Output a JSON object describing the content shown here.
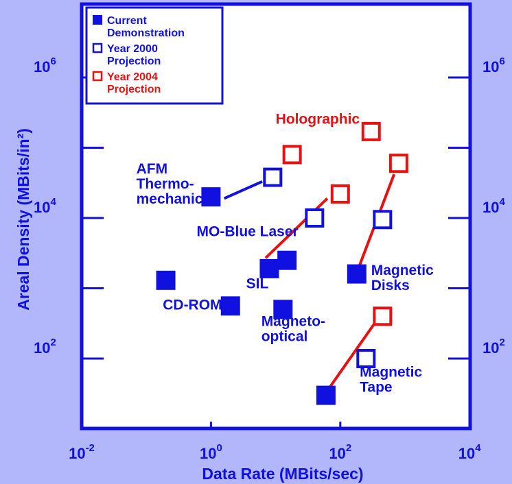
{
  "colors": {
    "background": "#b2b6fb",
    "axis": "#1010e0",
    "current": "#1010e0",
    "y2000": "#1010e0",
    "y2004": "#e81010",
    "plot_bg": "#ffffff"
  },
  "chart_data": {
    "type": "scatter",
    "xlabel": "Data Rate (MBits/sec)",
    "ylabel": "Areal Density (MBits/in²)",
    "x_scale": "log",
    "y_scale": "log",
    "xlim": [
      0.01,
      10000
    ],
    "ylim": [
      3,
      3000000
    ],
    "x_ticks": [
      {
        "value": 0.01,
        "base": "10",
        "exp": "-2"
      },
      {
        "value": 1,
        "base": "10",
        "exp": "0"
      },
      {
        "value": 100,
        "base": "10",
        "exp": "2"
      },
      {
        "value": 10000,
        "base": "10",
        "exp": "4"
      }
    ],
    "y_ticks": [
      {
        "value": 100,
        "base": "10",
        "exp": "2"
      },
      {
        "value": 10000,
        "base": "10",
        "exp": "4"
      },
      {
        "value": 1000000,
        "base": "10",
        "exp": "6"
      }
    ],
    "legend": {
      "placement": "top-left",
      "entries": [
        {
          "series": "current",
          "label": [
            "Current",
            "Demonstration"
          ]
        },
        {
          "series": "y2000",
          "label": [
            "Year 2000",
            "Projection"
          ]
        },
        {
          "series": "y2004",
          "label": [
            "Year 2004",
            "Projection"
          ]
        }
      ]
    },
    "series": [
      {
        "id": "current",
        "marker": "filled-square",
        "points": [
          {
            "name": "AFM Thermomechanical",
            "x": 1.0,
            "y": 20000
          },
          {
            "name": "MO-Blue Laser",
            "x": 15,
            "y": 2500
          },
          {
            "name": "SIL",
            "x": 8,
            "y": 1900
          },
          {
            "name": "Magneto-optical",
            "x": 13,
            "y": 500
          },
          {
            "name": "CD-ROM",
            "x": 0.2,
            "y": 1300
          },
          {
            "name": "CD-ROM",
            "x": 2,
            "y": 560
          },
          {
            "name": "Magnetic Disks",
            "x": 180,
            "y": 1600
          },
          {
            "name": "Magnetic Tape",
            "x": 60,
            "y": 30
          }
        ]
      },
      {
        "id": "y2000",
        "marker": "open-square",
        "points": [
          {
            "name": "AFM Thermomechanical",
            "x": 9,
            "y": 38000
          },
          {
            "name": "MO-Blue Laser",
            "x": 40,
            "y": 10000
          },
          {
            "name": "Magnetic Disks",
            "x": 450,
            "y": 9500
          },
          {
            "name": "Magnetic Tape",
            "x": 250,
            "y": 100
          }
        ]
      },
      {
        "id": "y2004",
        "marker": "open-square",
        "points": [
          {
            "name": "Holographic",
            "x": 300,
            "y": 170000
          },
          {
            "name": "AFM Thermomechanical",
            "x": 18,
            "y": 80000
          },
          {
            "name": "MO-Blue Laser",
            "x": 100,
            "y": 22000
          },
          {
            "name": "Magnetic Disks",
            "x": 800,
            "y": 60000
          },
          {
            "name": "Magnetic Tape",
            "x": 450,
            "y": 400
          }
        ]
      }
    ],
    "connectors": [
      {
        "color": "y2000",
        "from": {
          "x": 1.6,
          "y": 19000
        },
        "to": {
          "x": 6.2,
          "y": 33000
        }
      },
      {
        "color": "y2004",
        "from": {
          "x": 7,
          "y": 2700
        },
        "to": {
          "x": 63,
          "y": 19000
        }
      },
      {
        "color": "y2004",
        "from": {
          "x": 190,
          "y": 1900
        },
        "to": {
          "x": 680,
          "y": 42000
        }
      },
      {
        "color": "y2004",
        "from": {
          "x": 70,
          "y": 40
        },
        "to": {
          "x": 350,
          "y": 330
        }
      }
    ],
    "annotations": [
      {
        "color": "y2004",
        "lines": [
          "Holographic"
        ],
        "x": 10,
        "y": 220000
      },
      {
        "color": "current",
        "lines": [
          "AFM",
          "Thermo-",
          "mechanical"
        ],
        "x": 0.07,
        "y": 43000
      },
      {
        "color": "current",
        "lines": [
          "MO-Blue Laser"
        ],
        "x": 0.6,
        "y": 5500
      },
      {
        "color": "current",
        "lines": [
          "SIL"
        ],
        "x": 3.5,
        "y": 1000
      },
      {
        "color": "current",
        "lines": [
          "CD-ROM"
        ],
        "x": 0.18,
        "y": 500
      },
      {
        "color": "current",
        "lines": [
          "Magneto-",
          "optical"
        ],
        "x": 6,
        "y": 290
      },
      {
        "color": "current",
        "lines": [
          "Magnetic",
          "Disks"
        ],
        "x": 300,
        "y": 1550
      },
      {
        "color": "current",
        "lines": [
          "Magnetic",
          "Tape"
        ],
        "x": 200,
        "y": 55
      }
    ]
  }
}
